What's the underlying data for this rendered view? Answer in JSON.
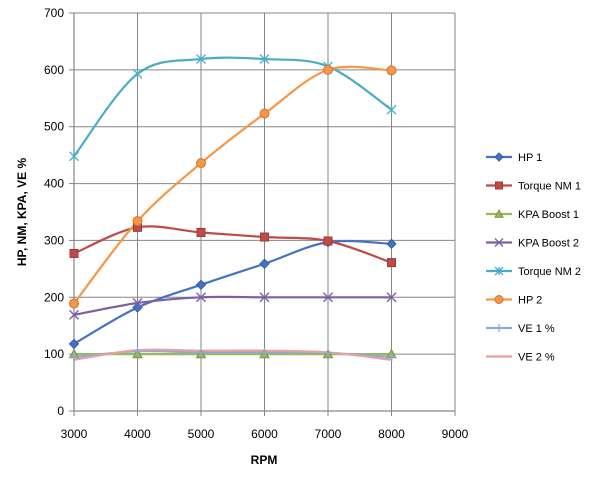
{
  "chart_data": {
    "type": "line",
    "title": "",
    "xlabel": "RPM",
    "ylabel": "HP, NM, KPA, VE %",
    "xlim": [
      3000,
      9000
    ],
    "ylim": [
      0,
      700
    ],
    "x_ticks": [
      3000,
      4000,
      5000,
      6000,
      7000,
      8000,
      9000
    ],
    "y_ticks": [
      0,
      100,
      200,
      300,
      400,
      500,
      600,
      700
    ],
    "grid": true,
    "legend_position": "right",
    "series": [
      {
        "name": "HP 1",
        "color": "#4472C4",
        "marker": "diamond",
        "x": [
          3000,
          4000,
          5000,
          6000,
          7000,
          8000
        ],
        "y": [
          118,
          182,
          222,
          259,
          297,
          294
        ]
      },
      {
        "name": "Torque NM 1",
        "color": "#BE4B48",
        "marker": "square",
        "x": [
          3000,
          4000,
          5000,
          6000,
          7000,
          8000
        ],
        "y": [
          277,
          323,
          314,
          306,
          299,
          261
        ]
      },
      {
        "name": "KPA Boost 1",
        "color": "#98B954",
        "marker": "triangle",
        "x": [
          3000,
          4000,
          5000,
          6000,
          7000,
          8000
        ],
        "y": [
          100,
          100,
          100,
          100,
          100,
          100
        ]
      },
      {
        "name": "KPA Boost 2",
        "color": "#7D60A0",
        "marker": "x",
        "x": [
          3000,
          4000,
          5000,
          6000,
          7000,
          8000
        ],
        "y": [
          169,
          190,
          200,
          200,
          200,
          200
        ]
      },
      {
        "name": "Torque NM 2",
        "color": "#4BACC6",
        "marker": "star",
        "x": [
          3000,
          4000,
          5000,
          6000,
          7000,
          8000
        ],
        "y": [
          448,
          593,
          619,
          619,
          606,
          530
        ]
      },
      {
        "name": "HP 2",
        "color": "#F79646",
        "marker": "circle",
        "x": [
          3000,
          4000,
          5000,
          6000,
          7000,
          8000
        ],
        "y": [
          189,
          334,
          436,
          523,
          600,
          599
        ]
      },
      {
        "name": "VE 1 %",
        "color": "#8EA9DB",
        "marker": "plus",
        "x": [
          3000,
          4000,
          5000,
          6000,
          7000,
          8000
        ],
        "y": [
          95,
          105,
          103,
          103,
          102,
          95
        ]
      },
      {
        "name": "VE 2 %",
        "color": "#E6A0A0",
        "marker": "none",
        "x": [
          3000,
          4000,
          5000,
          6000,
          7000,
          8000
        ],
        "y": [
          90,
          107,
          106,
          106,
          103,
          90
        ]
      }
    ]
  }
}
